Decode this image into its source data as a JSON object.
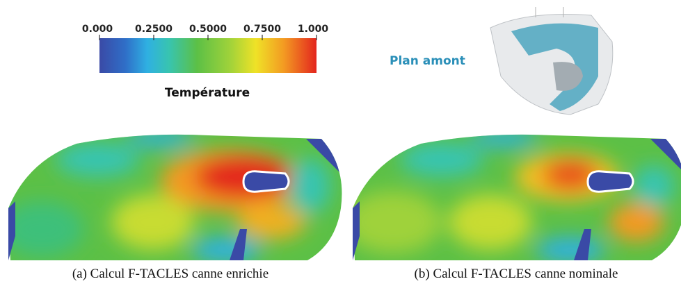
{
  "colorbar": {
    "ticks": [
      "0.000",
      "0.2500",
      "0.5000",
      "0.7500",
      "1.000"
    ],
    "title": "Température"
  },
  "plane_label": "Plan amont",
  "captions": [
    "(a) Calcul F-TACLES canne enrichie",
    "(b) Calcul F-TACLES canne nominale"
  ]
}
